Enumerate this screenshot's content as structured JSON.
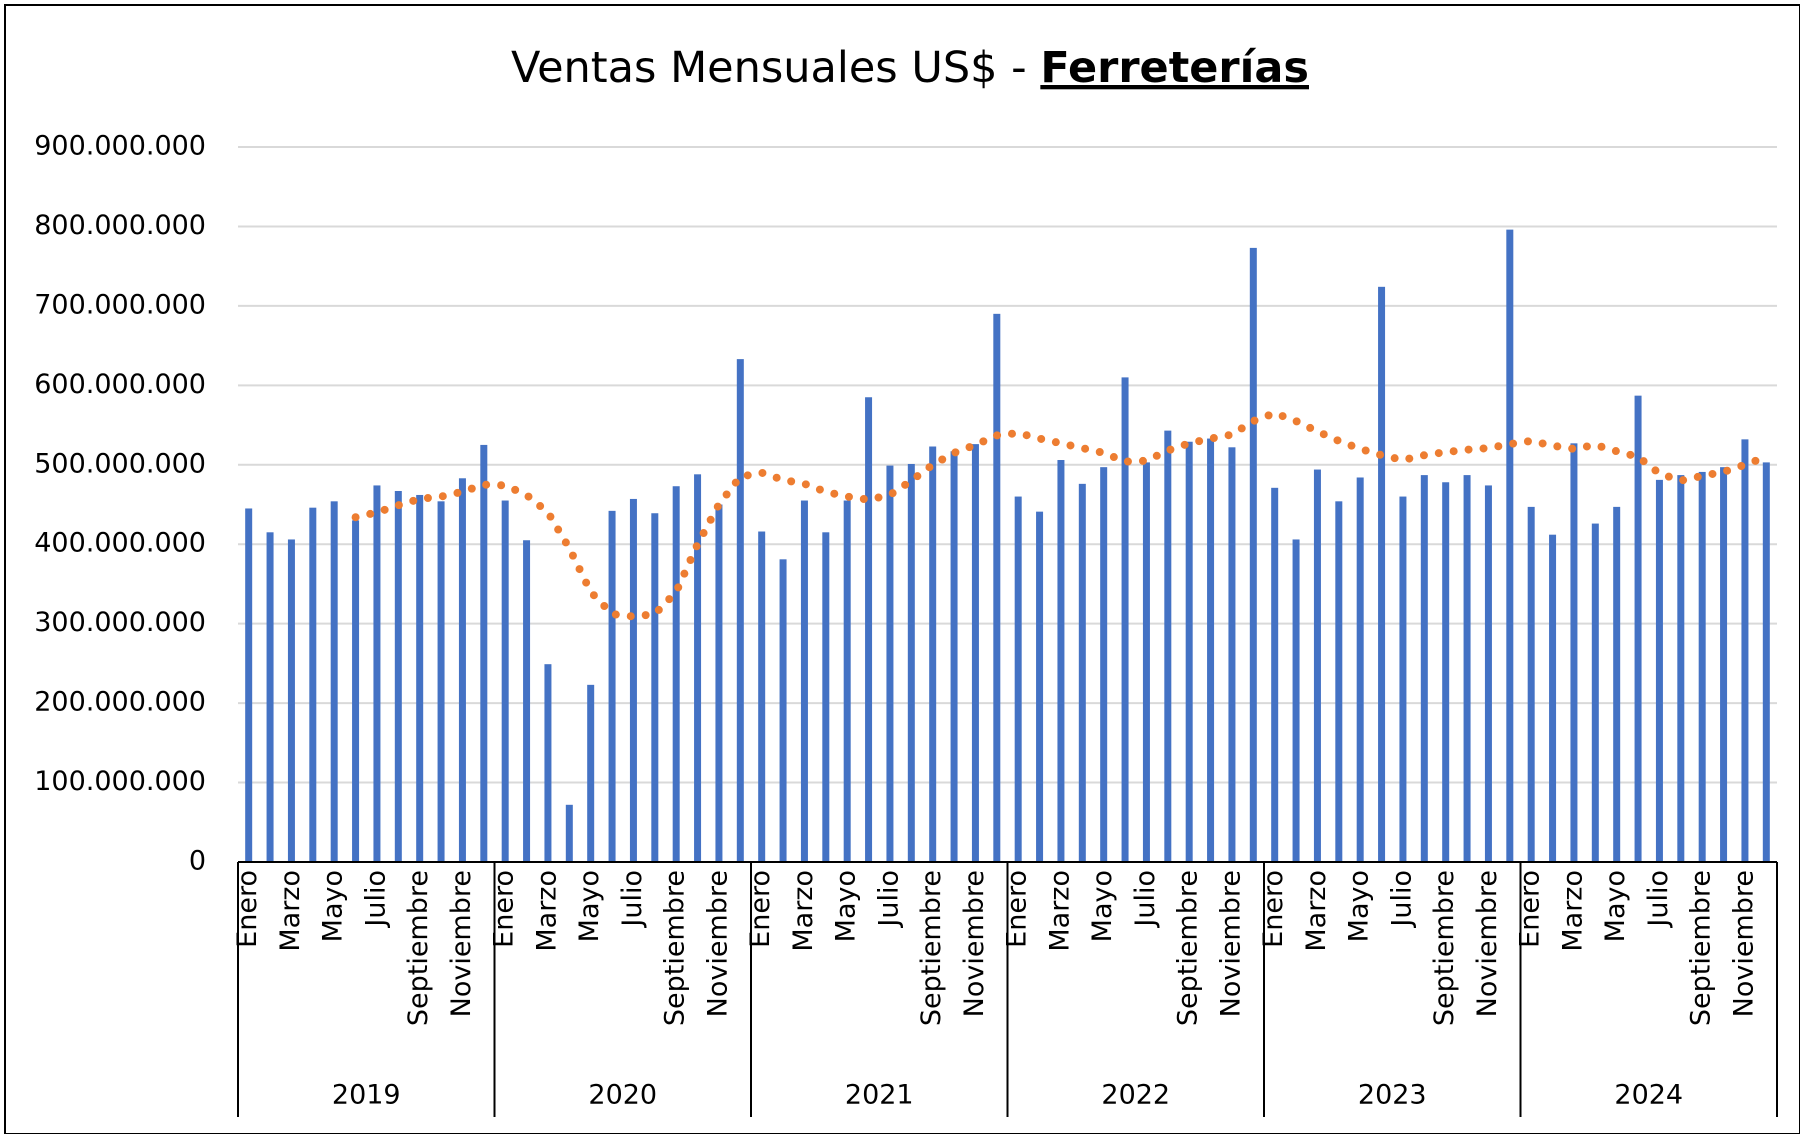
{
  "chart_data": {
    "type": "bar",
    "title": "Ventas Mensuales US$ -",
    "title_highlight": "Ferreterías",
    "categories": [
      "Enero",
      null,
      "Marzo",
      null,
      "Mayo",
      null,
      "Julio",
      null,
      "Septiembre",
      null,
      "Noviembre",
      null,
      "Enero",
      null,
      "Marzo",
      null,
      "Mayo",
      null,
      "Julio",
      null,
      "Septiembre",
      null,
      "Noviembre",
      null,
      "Enero",
      null,
      "Marzo",
      null,
      "Mayo",
      null,
      "Julio",
      null,
      "Septiembre",
      null,
      "Noviembre",
      null,
      "Enero",
      null,
      "Marzo",
      null,
      "Mayo",
      null,
      "Julio",
      null,
      "Septiembre",
      null,
      "Noviembre",
      null,
      "Enero",
      null,
      "Marzo",
      null,
      "Mayo",
      null,
      "Julio",
      null,
      "Septiembre",
      null,
      "Noviembre",
      null,
      "Enero",
      null,
      "Marzo",
      null,
      "Mayo",
      null,
      "Julio",
      null,
      "Septiembre",
      null,
      "Noviembre",
      null
    ],
    "groups": [
      "2019",
      "2020",
      "2021",
      "2022",
      "2023",
      "2024"
    ],
    "series": [
      {
        "type": "bar",
        "color": "#4472c4",
        "values": [
          445000000,
          415000000,
          406000000,
          446000000,
          454000000,
          430000000,
          474000000,
          467000000,
          462000000,
          454000000,
          483000000,
          525000000,
          455000000,
          405000000,
          249000000,
          72000000,
          223000000,
          442000000,
          457000000,
          439000000,
          473000000,
          488000000,
          450000000,
          633000000,
          416000000,
          381000000,
          455000000,
          415000000,
          455000000,
          585000000,
          499000000,
          501000000,
          523000000,
          517000000,
          526000000,
          690000000,
          460000000,
          441000000,
          506000000,
          476000000,
          497000000,
          610000000,
          503000000,
          543000000,
          529000000,
          533000000,
          522000000,
          773000000,
          471000000,
          406000000,
          494000000,
          454000000,
          484000000,
          724000000,
          460000000,
          487000000,
          478000000,
          487000000,
          474000000,
          796000000,
          447000000,
          412000000,
          527000000,
          426000000,
          447000000,
          587000000,
          481000000,
          487000000,
          491000000,
          497000000,
          532000000,
          503000000
        ]
      },
      {
        "type": "line",
        "style": "dotted",
        "color": "#ed7d31",
        "values": [
          null,
          null,
          null,
          null,
          null,
          434000000,
          440000000,
          449000000,
          457000000,
          460000000,
          466000000,
          475000000,
          474000000,
          462000000,
          440000000,
          395000000,
          340000000,
          312000000,
          309000000,
          312000000,
          340000000,
          400000000,
          450000000,
          485000000,
          490000000,
          481000000,
          476000000,
          466000000,
          460000000,
          456000000,
          462000000,
          480000000,
          500000000,
          515000000,
          525000000,
          537000000,
          540000000,
          533000000,
          527000000,
          521000000,
          515000000,
          504000000,
          505000000,
          518000000,
          527000000,
          533000000,
          538000000,
          555000000,
          565000000,
          555000000,
          542000000,
          530000000,
          520000000,
          512000000,
          506000000,
          512000000,
          516000000,
          519000000,
          521000000,
          526000000,
          530000000,
          524000000,
          520000000,
          525000000,
          517000000,
          510000000,
          489000000,
          480000000,
          486000000,
          491000000,
          500000000,
          510000000
        ]
      }
    ],
    "ylim": [
      0,
      900000000
    ],
    "yticks": [
      0,
      {
        "value": 100000000,
        "label": "100.000.000"
      },
      {
        "value": 200000000,
        "label": "200.000.000"
      },
      {
        "value": 300000000,
        "label": "300.000.000"
      },
      {
        "value": 400000000,
        "label": "400.000.000"
      },
      {
        "value": 500000000,
        "label": "500.000.000"
      },
      {
        "value": 600000000,
        "label": "600.000.000"
      },
      {
        "value": 700000000,
        "label": "700.000.000"
      },
      {
        "value": 800000000,
        "label": "800.000.000"
      },
      {
        "value": 900000000,
        "label": "900.000.000"
      }
    ],
    "grid": true
  }
}
